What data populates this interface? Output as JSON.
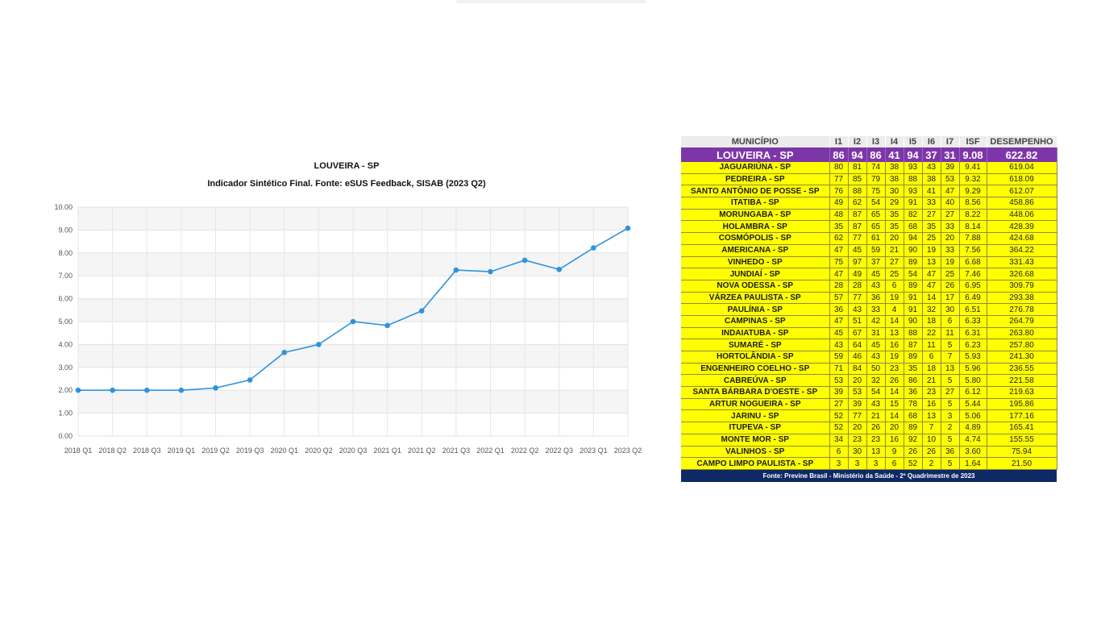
{
  "chart_data": {
    "type": "line",
    "title": "LOUVEIRA - SP",
    "subtitle": "Indicador Sintético Final. Fonte: eSUS Feedback, SISAB (2023 Q2)",
    "categories": [
      "2018 Q1",
      "2018 Q2",
      "2018 Q3",
      "2019 Q1",
      "2019 Q2",
      "2019 Q3",
      "2020 Q1",
      "2020 Q2",
      "2020 Q3",
      "2021 Q1",
      "2021 Q2",
      "2021 Q3",
      "2022 Q1",
      "2022 Q2",
      "2022 Q3",
      "2023 Q1",
      "2023 Q2"
    ],
    "series": [
      {
        "values": [
          2.0,
          2.0,
          2.0,
          2.0,
          2.1,
          2.45,
          3.65,
          4.0,
          5.0,
          4.83,
          5.47,
          7.25,
          7.18,
          7.68,
          7.28,
          8.22,
          9.08
        ]
      }
    ],
    "y_ticks": [
      "0.00",
      "1.00",
      "2.00",
      "3.00",
      "4.00",
      "5.00",
      "6.00",
      "7.00",
      "8.00",
      "9.00",
      "10.00"
    ],
    "ylim": [
      0,
      10
    ],
    "grid": true,
    "line_color": "#2e93de"
  },
  "table": {
    "headers": [
      "MUNICÍPIO",
      "I1",
      "I2",
      "I3",
      "I4",
      "I5",
      "I6",
      "I7",
      "ISF",
      "DESEMPENHO"
    ],
    "highlight": [
      "LOUVEIRA - SP",
      "86",
      "94",
      "86",
      "41",
      "94",
      "37",
      "31",
      "9.08",
      "622.82"
    ],
    "rows": [
      [
        "JAGUARIÚNA - SP",
        "80",
        "81",
        "74",
        "38",
        "93",
        "43",
        "39",
        "9.41",
        "619.04"
      ],
      [
        "PEDREIRA - SP",
        "77",
        "85",
        "79",
        "38",
        "88",
        "38",
        "53",
        "9.32",
        "618.09"
      ],
      [
        "SANTO ANTÔNIO DE POSSE - SP",
        "76",
        "88",
        "75",
        "30",
        "93",
        "41",
        "47",
        "9.29",
        "612.07"
      ],
      [
        "ITATIBA - SP",
        "49",
        "62",
        "54",
        "29",
        "91",
        "33",
        "40",
        "8.56",
        "458.86"
      ],
      [
        "MORUNGABA - SP",
        "48",
        "87",
        "65",
        "35",
        "82",
        "27",
        "27",
        "8.22",
        "448.06"
      ],
      [
        "HOLAMBRA - SP",
        "35",
        "87",
        "65",
        "35",
        "68",
        "35",
        "33",
        "8.14",
        "428.39"
      ],
      [
        "COSMÓPOLIS - SP",
        "62",
        "77",
        "61",
        "20",
        "94",
        "25",
        "20",
        "7.88",
        "424.68"
      ],
      [
        "AMERICANA - SP",
        "47",
        "45",
        "59",
        "21",
        "90",
        "19",
        "33",
        "7.56",
        "364.22"
      ],
      [
        "VINHEDO - SP",
        "75",
        "97",
        "37",
        "27",
        "89",
        "13",
        "19",
        "6.68",
        "331.43"
      ],
      [
        "JUNDIAÍ - SP",
        "47",
        "49",
        "45",
        "25",
        "54",
        "47",
        "25",
        "7.46",
        "326.68"
      ],
      [
        "NOVA ODESSA - SP",
        "28",
        "28",
        "43",
        "6",
        "89",
        "47",
        "26",
        "6.95",
        "309.79"
      ],
      [
        "VÁRZEA PAULISTA - SP",
        "57",
        "77",
        "36",
        "19",
        "91",
        "14",
        "17",
        "6.49",
        "293.38"
      ],
      [
        "PAULÍNIA - SP",
        "36",
        "43",
        "33",
        "4",
        "91",
        "32",
        "30",
        "6.51",
        "276.78"
      ],
      [
        "CAMPINAS - SP",
        "47",
        "51",
        "42",
        "14",
        "90",
        "18",
        "6",
        "6.33",
        "264.79"
      ],
      [
        "INDAIATUBA - SP",
        "45",
        "67",
        "31",
        "13",
        "88",
        "22",
        "11",
        "6.31",
        "263.80"
      ],
      [
        "SUMARÉ - SP",
        "43",
        "64",
        "45",
        "16",
        "87",
        "11",
        "5",
        "6.23",
        "257.80"
      ],
      [
        "HORTOLÂNDIA - SP",
        "59",
        "46",
        "43",
        "19",
        "89",
        "6",
        "7",
        "5.93",
        "241.30"
      ],
      [
        "ENGENHEIRO COELHO - SP",
        "71",
        "84",
        "50",
        "23",
        "35",
        "18",
        "13",
        "5.96",
        "236.55"
      ],
      [
        "CABREÚVA - SP",
        "53",
        "20",
        "32",
        "26",
        "86",
        "21",
        "5",
        "5.80",
        "221.58"
      ],
      [
        "SANTA BÁRBARA D'OESTE - SP",
        "39",
        "53",
        "54",
        "14",
        "36",
        "23",
        "27",
        "6.12",
        "219.63"
      ],
      [
        "ARTUR NOGUEIRA - SP",
        "27",
        "39",
        "43",
        "15",
        "78",
        "16",
        "5",
        "5.44",
        "195.86"
      ],
      [
        "JARINU - SP",
        "52",
        "77",
        "21",
        "14",
        "68",
        "13",
        "3",
        "5.06",
        "177.16"
      ],
      [
        "ITUPEVA - SP",
        "52",
        "20",
        "26",
        "20",
        "89",
        "7",
        "2",
        "4.89",
        "165.41"
      ],
      [
        "MONTE MOR - SP",
        "34",
        "23",
        "23",
        "16",
        "92",
        "10",
        "5",
        "4.74",
        "155.55"
      ],
      [
        "VALINHOS - SP",
        "6",
        "30",
        "13",
        "9",
        "26",
        "26",
        "36",
        "3.60",
        "75.94"
      ],
      [
        "CAMPO LIMPO PAULISTA - SP",
        "3",
        "3",
        "3",
        "6",
        "52",
        "2",
        "5",
        "1.64",
        "21.50"
      ]
    ],
    "footer": "Fonte: Previne Brasil - Ministério da Saúde - 2º Quadrimestre de 2023",
    "colors": {
      "header_bg": "#ececec",
      "highlight_bg": "#7c36a8",
      "row_bg": "#ffff00",
      "footer_bg": "#0e2a66"
    }
  }
}
